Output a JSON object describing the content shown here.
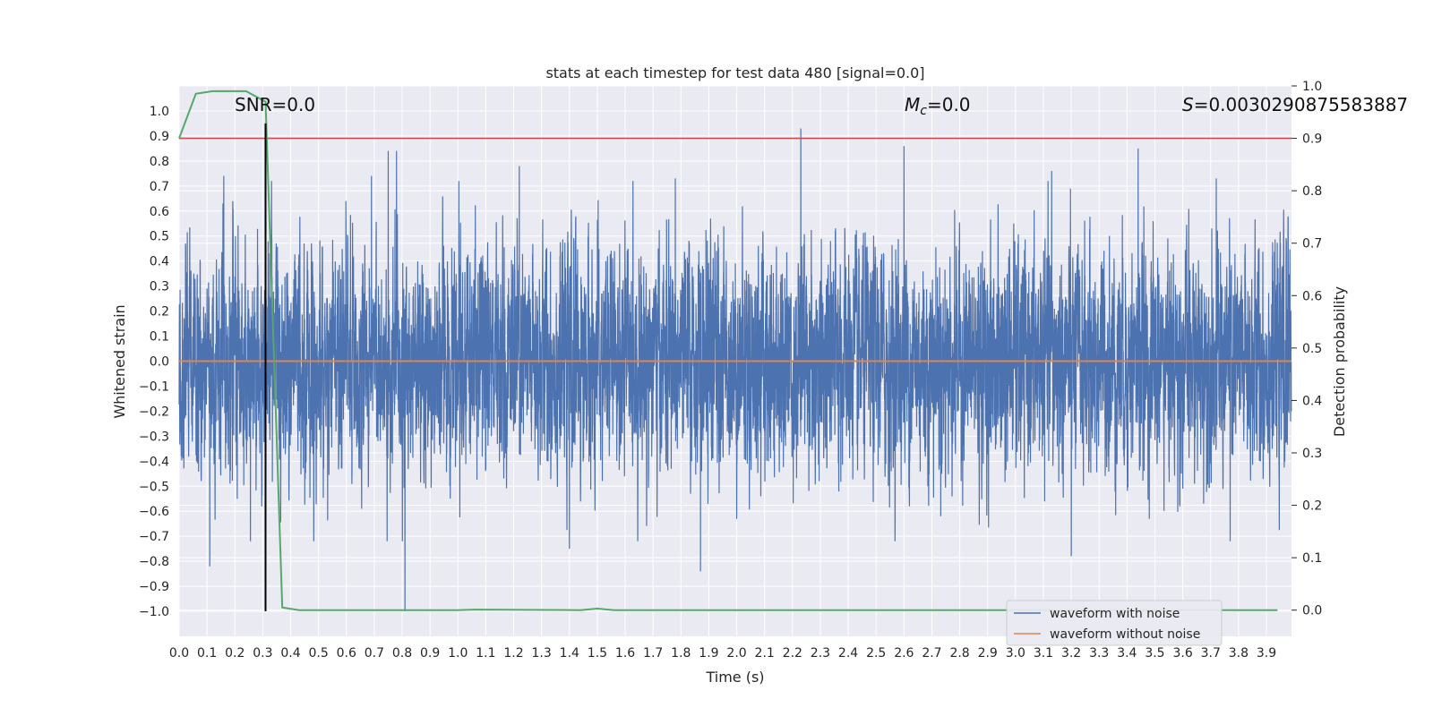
{
  "chart_data": {
    "type": "line",
    "title": "stats at each timestep for test data 480 [signal=0.0]",
    "xlabel": "Time (s)",
    "ylabel": "Whitened strain",
    "y2label": "Detection probability",
    "xlim": [
      0.0,
      3.99
    ],
    "ylim": [
      -1.1,
      1.1
    ],
    "y2lim": [
      -0.05,
      1.0
    ],
    "grid": true,
    "legend_position": "bottom-right",
    "x_ticks": [
      "0.0",
      "0.1",
      "0.2",
      "0.3",
      "0.4",
      "0.5",
      "0.6",
      "0.7",
      "0.8",
      "0.9",
      "1.0",
      "1.1",
      "1.2",
      "1.3",
      "1.4",
      "1.5",
      "1.6",
      "1.7",
      "1.8",
      "1.9",
      "2.0",
      "2.1",
      "2.2",
      "2.3",
      "2.4",
      "2.5",
      "2.6",
      "2.7",
      "2.8",
      "2.9",
      "3.0",
      "3.1",
      "3.2",
      "3.3",
      "3.4",
      "3.5",
      "3.6",
      "3.7",
      "3.8",
      "3.9"
    ],
    "y_ticks": [
      "1.0",
      "0.9",
      "0.8",
      "0.7",
      "0.6",
      "0.5",
      "0.4",
      "0.3",
      "0.2",
      "0.1",
      "0.0",
      "−0.1",
      "−0.2",
      "−0.3",
      "−0.4",
      "−0.5",
      "−0.6",
      "−0.7",
      "−0.8",
      "−0.9",
      "−1.0"
    ],
    "y2_ticks": [
      "1.0",
      "0.9",
      "0.8",
      "0.7",
      "0.6",
      "0.5",
      "0.4",
      "0.3",
      "0.2",
      "0.1",
      "0.0"
    ],
    "annotations": {
      "snr": "SNR=0.0",
      "mc_symbol": "M",
      "mc_sub": "c",
      "mc_value": "=0.0",
      "s_symbol": "S",
      "s_value": "=0.0030290875583887"
    },
    "legend": {
      "noise_label": "waveform with noise",
      "clean_label": "waveform without noise"
    },
    "series": [
      {
        "name": "waveform with noise",
        "axis": "left",
        "color": "#4c72b0",
        "noise_std": 0.22,
        "sample_rate": 2048,
        "peaks": [
          {
            "x": 0.16,
            "y": 0.74
          },
          {
            "x": 0.69,
            "y": 0.74
          },
          {
            "x": 0.75,
            "y": 0.84
          },
          {
            "x": 0.78,
            "y": 0.84
          },
          {
            "x": 1.22,
            "y": 0.78
          },
          {
            "x": 1.4,
            "y": 0.86
          },
          {
            "x": 1.78,
            "y": 0.73
          },
          {
            "x": 2.23,
            "y": 0.93
          },
          {
            "x": 2.6,
            "y": 0.86
          },
          {
            "x": 3.13,
            "y": 0.76
          },
          {
            "x": 3.44,
            "y": 0.85
          },
          {
            "x": 3.72,
            "y": 0.73
          },
          {
            "x": 0.81,
            "y": -1.0
          },
          {
            "x": 0.11,
            "y": -0.82
          },
          {
            "x": 1.87,
            "y": -0.84
          },
          {
            "x": 3.2,
            "y": -0.78
          },
          {
            "x": 1.4,
            "y": -0.75
          },
          {
            "x": 3.77,
            "y": -0.72
          }
        ]
      },
      {
        "name": "waveform without noise",
        "axis": "left",
        "color": "#dd8452",
        "x": [
          0.0,
          3.99
        ],
        "y": [
          0.0,
          0.0
        ]
      },
      {
        "name": "detection probability",
        "axis": "right",
        "color": "#55a868",
        "x": [
          0.0,
          0.06,
          0.12,
          0.18,
          0.24,
          0.31,
          0.37,
          0.43,
          1.0,
          1.06,
          1.44,
          1.5,
          1.56,
          2.0,
          3.0,
          3.94
        ],
        "y": [
          0.9,
          0.985,
          0.99,
          0.99,
          0.99,
          0.97,
          0.005,
          0.0,
          0.0,
          0.001,
          0.0,
          0.003,
          0.0,
          0.0,
          0.0,
          0.0
        ]
      },
      {
        "name": "threshold",
        "axis": "right",
        "color": "#c44e52",
        "x": [
          0.0,
          3.99
        ],
        "y": [
          0.9,
          0.9
        ]
      }
    ],
    "marker_line": {
      "x": 0.31,
      "y_from": -1.0,
      "y_to": 0.95,
      "color": "#000000"
    }
  }
}
